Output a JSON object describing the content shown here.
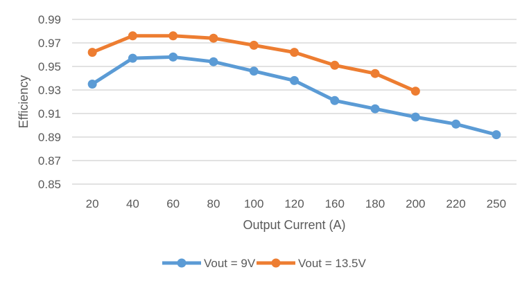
{
  "chart_data": {
    "type": "line",
    "title": "",
    "xlabel": "Output Current (A)",
    "ylabel": "Efficiency",
    "categories": [
      "20",
      "40",
      "60",
      "80",
      "100",
      "120",
      "160",
      "180",
      "200",
      "220",
      "250"
    ],
    "ylim": [
      0.85,
      0.99
    ],
    "yticks": [
      "0.85",
      "0.87",
      "0.89",
      "0.91",
      "0.93",
      "0.95",
      "0.97",
      "0.99"
    ],
    "grid": true,
    "legend_position": "bottom",
    "series": [
      {
        "name": "Vout = 9V",
        "color": "#5B9BD5",
        "values": [
          0.935,
          0.957,
          0.958,
          0.954,
          0.946,
          0.938,
          0.921,
          0.914,
          0.907,
          0.901,
          0.892
        ]
      },
      {
        "name": "Vout = 13.5V",
        "color": "#ED7D31",
        "values": [
          0.962,
          0.976,
          0.976,
          0.974,
          0.968,
          0.962,
          0.951,
          0.944,
          0.929,
          null,
          null
        ]
      }
    ]
  }
}
